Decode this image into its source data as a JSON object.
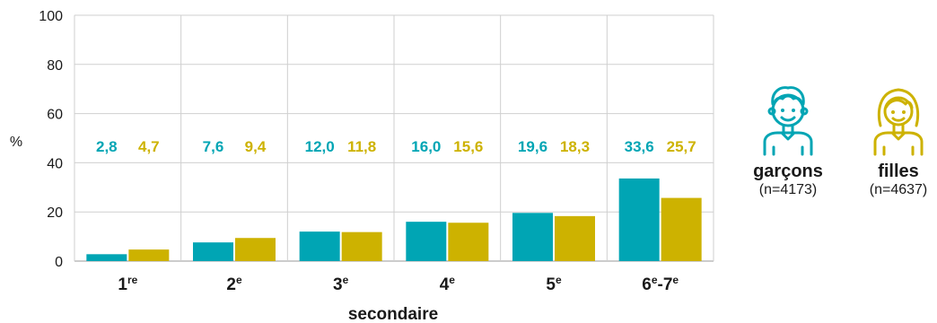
{
  "chart_data": {
    "type": "bar",
    "ylabel": "%",
    "xlabel": "secondaire",
    "ylim": [
      0,
      100
    ],
    "yticks": [
      0,
      20,
      40,
      60,
      80,
      100
    ],
    "categories": [
      {
        "base": "1",
        "sup": "re"
      },
      {
        "base": "2",
        "sup": "e"
      },
      {
        "base": "3",
        "sup": "e"
      },
      {
        "base": "4",
        "sup": "e"
      },
      {
        "base": "5",
        "sup": "e"
      },
      {
        "base": "6",
        "sup": "e",
        "base2": "-7",
        "sup2": "e"
      }
    ],
    "series": [
      {
        "name": "garçons",
        "count": "(n=4173)",
        "color": "#00a5b4",
        "icon": "boy-icon",
        "values": [
          2.8,
          7.6,
          12.0,
          16.0,
          19.6,
          33.6
        ],
        "labels": [
          "2,8",
          "7,6",
          "12,0",
          "16,0",
          "19,6",
          "33,6"
        ]
      },
      {
        "name": "filles",
        "count": "(n=4637)",
        "color": "#cdb200",
        "icon": "girl-icon",
        "values": [
          4.7,
          9.4,
          11.8,
          15.6,
          18.3,
          25.7
        ],
        "labels": [
          "4,7",
          "9,4",
          "11,8",
          "15,6",
          "18,3",
          "25,7"
        ]
      }
    ],
    "grid": true,
    "legend_position": "right"
  }
}
